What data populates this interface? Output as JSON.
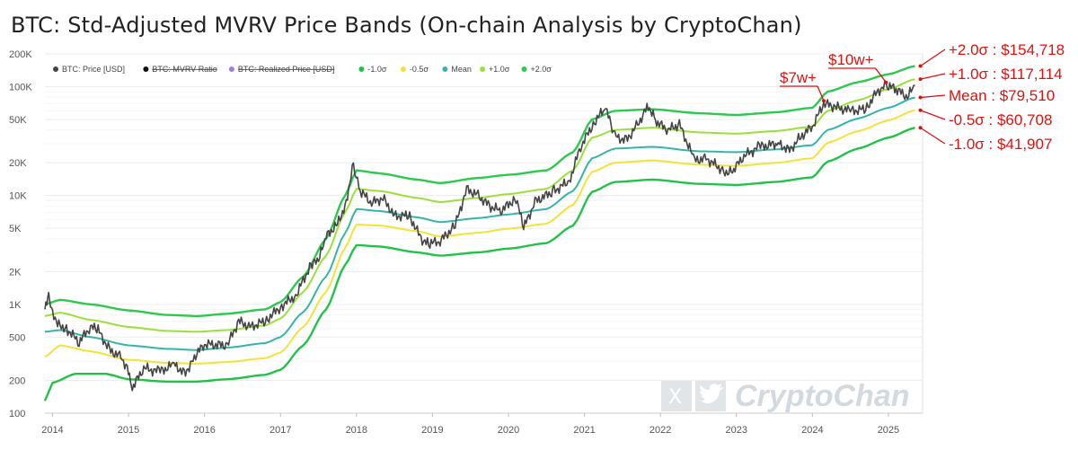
{
  "chart_data": {
    "type": "line",
    "title": "BTC: Std-Adjusted MVRV Price Bands (On-chain Analysis by CryptoChan)",
    "yscale": "log",
    "ylim": [
      100,
      200000
    ],
    "xlim": [
      2013.9,
      2025.45
    ],
    "y_ticks": [
      {
        "v": 100,
        "label": "100"
      },
      {
        "v": 200,
        "label": "200"
      },
      {
        "v": 500,
        "label": "500"
      },
      {
        "v": 1000,
        "label": "1K"
      },
      {
        "v": 2000,
        "label": "2K"
      },
      {
        "v": 5000,
        "label": "5K"
      },
      {
        "v": 10000,
        "label": "10K"
      },
      {
        "v": 20000,
        "label": "20K"
      },
      {
        "v": 50000,
        "label": "50K"
      },
      {
        "v": 100000,
        "label": "100K"
      },
      {
        "v": 200000,
        "label": "200K"
      }
    ],
    "x_ticks": [
      {
        "v": 2014,
        "label": "2014"
      },
      {
        "v": 2015,
        "label": "2015"
      },
      {
        "v": 2016,
        "label": "2016"
      },
      {
        "v": 2017,
        "label": "2017"
      },
      {
        "v": 2018,
        "label": "2018"
      },
      {
        "v": 2019,
        "label": "2019"
      },
      {
        "v": 2020,
        "label": "2020"
      },
      {
        "v": 2021,
        "label": "2021"
      },
      {
        "v": 2022,
        "label": "2022"
      },
      {
        "v": 2023,
        "label": "2023"
      },
      {
        "v": 2024,
        "label": "2024"
      },
      {
        "v": 2025,
        "label": "2025"
      }
    ],
    "legend": [
      {
        "label": "BTC: Price [USD]",
        "color": "#444444",
        "struck": false
      },
      {
        "label": "BTC: MVRV Ratio",
        "color": "#111111",
        "struck": true
      },
      {
        "label": "BTC: Realized Price [USD]",
        "color": "#9b7fe0",
        "struck": true
      },
      {
        "label": "-1.0σ",
        "color": "#22c24a",
        "struck": false
      },
      {
        "label": "-0.5σ",
        "color": "#f2e23a",
        "struck": false
      },
      {
        "label": "Mean",
        "color": "#35b5a8",
        "struck": false
      },
      {
        "label": "+1.0σ",
        "color": "#9be03a",
        "struck": false
      },
      {
        "label": "+2.0σ",
        "color": "#2cc94e",
        "struck": false
      }
    ],
    "series": [
      {
        "name": "+2.0σ",
        "color": "#2cc94e",
        "width": 2.4,
        "points": [
          [
            2013.9,
            1000
          ],
          [
            2014.1,
            1100
          ],
          [
            2014.5,
            1000
          ],
          [
            2015.0,
            880
          ],
          [
            2015.5,
            800
          ],
          [
            2015.9,
            780
          ],
          [
            2016.3,
            820
          ],
          [
            2016.8,
            900
          ],
          [
            2017.0,
            1050
          ],
          [
            2017.3,
            1800
          ],
          [
            2017.6,
            4000
          ],
          [
            2017.85,
            10000
          ],
          [
            2018.0,
            17000
          ],
          [
            2018.3,
            16000
          ],
          [
            2018.8,
            14000
          ],
          [
            2019.1,
            13000
          ],
          [
            2019.6,
            14500
          ],
          [
            2020.0,
            15500
          ],
          [
            2020.5,
            17000
          ],
          [
            2020.85,
            25000
          ],
          [
            2021.1,
            50000
          ],
          [
            2021.4,
            60000
          ],
          [
            2021.9,
            62000
          ],
          [
            2022.5,
            57000
          ],
          [
            2023.0,
            55000
          ],
          [
            2023.5,
            58000
          ],
          [
            2024.0,
            64000
          ],
          [
            2024.2,
            90000
          ],
          [
            2024.6,
            110000
          ],
          [
            2025.0,
            130000
          ],
          [
            2025.35,
            154718
          ]
        ]
      },
      {
        "name": "+1.0σ",
        "color": "#9be03a",
        "width": 2,
        "points": [
          [
            2013.9,
            780
          ],
          [
            2014.1,
            840
          ],
          [
            2014.5,
            720
          ],
          [
            2015.0,
            620
          ],
          [
            2015.5,
            570
          ],
          [
            2015.9,
            560
          ],
          [
            2016.3,
            580
          ],
          [
            2016.8,
            640
          ],
          [
            2017.0,
            740
          ],
          [
            2017.3,
            1300
          ],
          [
            2017.6,
            2800
          ],
          [
            2017.85,
            7000
          ],
          [
            2018.0,
            11500
          ],
          [
            2018.3,
            11000
          ],
          [
            2018.8,
            9500
          ],
          [
            2019.1,
            8700
          ],
          [
            2019.6,
            9500
          ],
          [
            2020.0,
            10300
          ],
          [
            2020.5,
            11500
          ],
          [
            2020.85,
            17000
          ],
          [
            2021.1,
            34000
          ],
          [
            2021.4,
            40000
          ],
          [
            2021.9,
            42000
          ],
          [
            2022.5,
            38000
          ],
          [
            2023.0,
            37000
          ],
          [
            2023.5,
            39000
          ],
          [
            2024.0,
            43000
          ],
          [
            2024.2,
            60000
          ],
          [
            2024.6,
            75000
          ],
          [
            2025.0,
            95000
          ],
          [
            2025.35,
            117114
          ]
        ]
      },
      {
        "name": "Mean",
        "color": "#35b5a8",
        "width": 2,
        "points": [
          [
            2013.9,
            560
          ],
          [
            2014.1,
            580
          ],
          [
            2014.5,
            500
          ],
          [
            2015.0,
            420
          ],
          [
            2015.5,
            390
          ],
          [
            2015.9,
            380
          ],
          [
            2016.3,
            400
          ],
          [
            2016.8,
            440
          ],
          [
            2017.0,
            500
          ],
          [
            2017.3,
            850
          ],
          [
            2017.6,
            1800
          ],
          [
            2017.85,
            4500
          ],
          [
            2018.0,
            7500
          ],
          [
            2018.3,
            7200
          ],
          [
            2018.8,
            6300
          ],
          [
            2019.1,
            5700
          ],
          [
            2019.6,
            6200
          ],
          [
            2020.0,
            6700
          ],
          [
            2020.5,
            7500
          ],
          [
            2020.85,
            11000
          ],
          [
            2021.1,
            22000
          ],
          [
            2021.4,
            27000
          ],
          [
            2021.9,
            28000
          ],
          [
            2022.5,
            25500
          ],
          [
            2023.0,
            25000
          ],
          [
            2023.5,
            26500
          ],
          [
            2024.0,
            29000
          ],
          [
            2024.2,
            40000
          ],
          [
            2024.6,
            51000
          ],
          [
            2025.0,
            64000
          ],
          [
            2025.35,
            79510
          ]
        ]
      },
      {
        "name": "-0.5σ",
        "color": "#f2e23a",
        "width": 2,
        "points": [
          [
            2013.9,
            330
          ],
          [
            2014.1,
            420
          ],
          [
            2014.5,
            370
          ],
          [
            2015.0,
            310
          ],
          [
            2015.5,
            290
          ],
          [
            2015.9,
            285
          ],
          [
            2016.3,
            295
          ],
          [
            2016.8,
            320
          ],
          [
            2017.0,
            360
          ],
          [
            2017.3,
            620
          ],
          [
            2017.6,
            1300
          ],
          [
            2017.85,
            3300
          ],
          [
            2018.0,
            5400
          ],
          [
            2018.3,
            5300
          ],
          [
            2018.8,
            4700
          ],
          [
            2019.1,
            4200
          ],
          [
            2019.6,
            4550
          ],
          [
            2020.0,
            4950
          ],
          [
            2020.5,
            5500
          ],
          [
            2020.85,
            8200
          ],
          [
            2021.1,
            16500
          ],
          [
            2021.4,
            20000
          ],
          [
            2021.9,
            21000
          ],
          [
            2022.5,
            19200
          ],
          [
            2023.0,
            18700
          ],
          [
            2023.5,
            19900
          ],
          [
            2024.0,
            22000
          ],
          [
            2024.2,
            30500
          ],
          [
            2024.6,
            39000
          ],
          [
            2025.0,
            49000
          ],
          [
            2025.35,
            60708
          ]
        ]
      },
      {
        "name": "-1.0σ",
        "color": "#22c24a",
        "width": 2.4,
        "points": [
          [
            2013.9,
            130
          ],
          [
            2014.0,
            190
          ],
          [
            2014.3,
            230
          ],
          [
            2014.7,
            230
          ],
          [
            2015.0,
            205
          ],
          [
            2015.5,
            195
          ],
          [
            2015.9,
            195
          ],
          [
            2016.3,
            205
          ],
          [
            2016.8,
            225
          ],
          [
            2017.0,
            250
          ],
          [
            2017.3,
            420
          ],
          [
            2017.6,
            900
          ],
          [
            2017.85,
            2300
          ],
          [
            2018.0,
            3500
          ],
          [
            2018.3,
            3400
          ],
          [
            2018.8,
            3000
          ],
          [
            2019.1,
            2800
          ],
          [
            2019.6,
            3000
          ],
          [
            2020.0,
            3250
          ],
          [
            2020.5,
            3650
          ],
          [
            2020.85,
            5300
          ],
          [
            2021.1,
            10800
          ],
          [
            2021.4,
            13300
          ],
          [
            2021.9,
            14000
          ],
          [
            2022.5,
            12800
          ],
          [
            2023.0,
            12500
          ],
          [
            2023.5,
            13300
          ],
          [
            2024.0,
            14700
          ],
          [
            2024.2,
            20500
          ],
          [
            2024.6,
            27000
          ],
          [
            2025.0,
            34000
          ],
          [
            2025.35,
            41907
          ]
        ]
      },
      {
        "name": "BTC: Price [USD]",
        "color": "#444444",
        "width": 1.6,
        "points": [
          [
            2013.9,
            900
          ],
          [
            2013.95,
            1150
          ],
          [
            2014.0,
            800
          ],
          [
            2014.1,
            650
          ],
          [
            2014.2,
            580
          ],
          [
            2014.35,
            450
          ],
          [
            2014.5,
            620
          ],
          [
            2014.6,
            580
          ],
          [
            2014.75,
            380
          ],
          [
            2014.9,
            330
          ],
          [
            2015.0,
            250
          ],
          [
            2015.05,
            170
          ],
          [
            2015.2,
            260
          ],
          [
            2015.4,
            240
          ],
          [
            2015.6,
            280
          ],
          [
            2015.75,
            230
          ],
          [
            2015.85,
            320
          ],
          [
            2016.0,
            430
          ],
          [
            2016.3,
            420
          ],
          [
            2016.45,
            700
          ],
          [
            2016.6,
            620
          ],
          [
            2016.8,
            700
          ],
          [
            2017.0,
            950
          ],
          [
            2017.2,
            1200
          ],
          [
            2017.4,
            2300
          ],
          [
            2017.5,
            2500
          ],
          [
            2017.6,
            4200
          ],
          [
            2017.75,
            5500
          ],
          [
            2017.85,
            8000
          ],
          [
            2017.96,
            19000
          ],
          [
            2018.05,
            11000
          ],
          [
            2018.2,
            8500
          ],
          [
            2018.35,
            9500
          ],
          [
            2018.5,
            6500
          ],
          [
            2018.7,
            6500
          ],
          [
            2018.85,
            4000
          ],
          [
            2018.95,
            3600
          ],
          [
            2019.1,
            3800
          ],
          [
            2019.3,
            5300
          ],
          [
            2019.45,
            11500
          ],
          [
            2019.6,
            10000
          ],
          [
            2019.75,
            8000
          ],
          [
            2019.9,
            7200
          ],
          [
            2020.1,
            9500
          ],
          [
            2020.2,
            5000
          ],
          [
            2020.35,
            8800
          ],
          [
            2020.6,
            11000
          ],
          [
            2020.8,
            13500
          ],
          [
            2020.95,
            28000
          ],
          [
            2021.15,
            50000
          ],
          [
            2021.28,
            63000
          ],
          [
            2021.4,
            35000
          ],
          [
            2021.55,
            32000
          ],
          [
            2021.7,
            45000
          ],
          [
            2021.84,
            67000
          ],
          [
            2021.95,
            47000
          ],
          [
            2022.1,
            40000
          ],
          [
            2022.25,
            45000
          ],
          [
            2022.45,
            21000
          ],
          [
            2022.6,
            22000
          ],
          [
            2022.85,
            16500
          ],
          [
            2022.95,
            16800
          ],
          [
            2023.1,
            23000
          ],
          [
            2023.3,
            28000
          ],
          [
            2023.55,
            30000
          ],
          [
            2023.7,
            26000
          ],
          [
            2023.85,
            35000
          ],
          [
            2024.0,
            43000
          ],
          [
            2024.15,
            70000
          ],
          [
            2024.3,
            65000
          ],
          [
            2024.5,
            60000
          ],
          [
            2024.7,
            62000
          ],
          [
            2024.85,
            90000
          ],
          [
            2024.97,
            103000
          ],
          [
            2025.1,
            95000
          ],
          [
            2025.25,
            80000
          ],
          [
            2025.35,
            103000
          ]
        ]
      }
    ],
    "annotations": [
      {
        "text": "$7w+",
        "target": [
          2024.15,
          70000
        ]
      },
      {
        "text": "$10w+",
        "target": [
          2024.97,
          103000
        ]
      }
    ],
    "band_labels": [
      {
        "text": "+2.0σ : $154,718",
        "value": 154718
      },
      {
        "text": "+1.0σ : $117,114",
        "value": 117114
      },
      {
        "text": "Mean : $79,510",
        "value": 79510
      },
      {
        "text": "-0.5σ : $60,708",
        "value": 60708
      },
      {
        "text": "-1.0σ : $41,907",
        "value": 41907
      }
    ]
  },
  "watermark": {
    "text": "CryptoChan",
    "x_icon": "x-logo-icon",
    "bird_icon": "twitter-bird-icon"
  }
}
